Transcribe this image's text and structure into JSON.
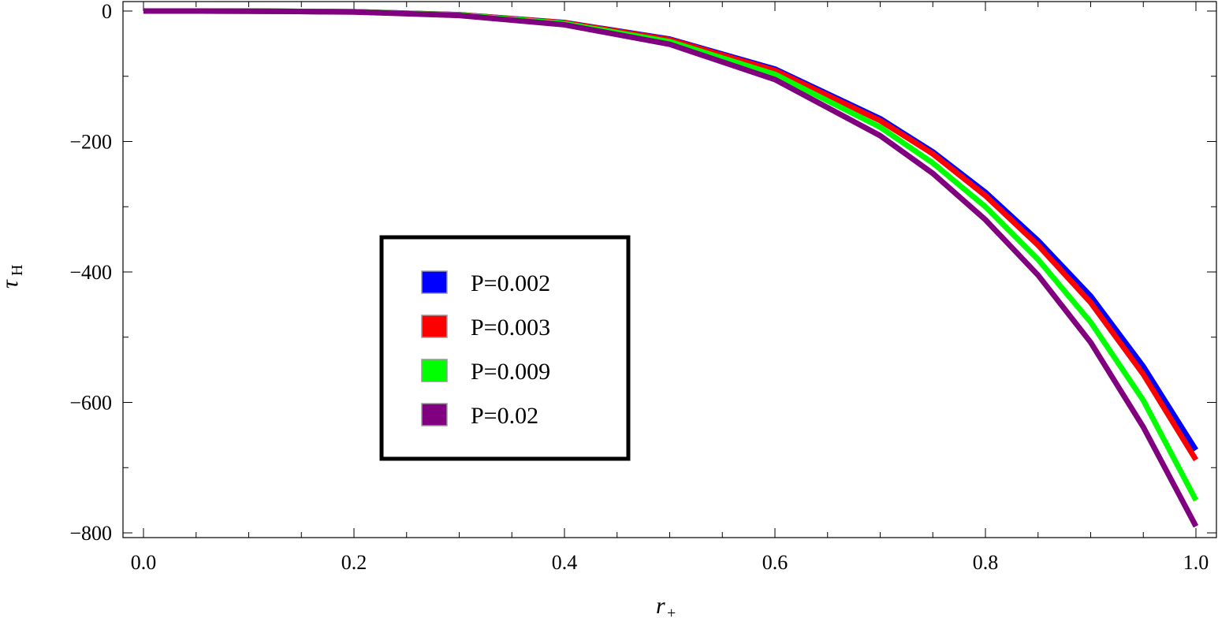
{
  "chart_data": {
    "type": "line",
    "xlabel": {
      "main": "r",
      "sub": "+"
    },
    "ylabel": {
      "main": "τ",
      "sub": "H"
    },
    "xlim": [
      0,
      1
    ],
    "ylim": [
      -800,
      0
    ],
    "xticks": [
      {
        "value": 0.0,
        "label": "0.0"
      },
      {
        "value": 0.2,
        "label": "0.2"
      },
      {
        "value": 0.4,
        "label": "0.4"
      },
      {
        "value": 0.6,
        "label": "0.6"
      },
      {
        "value": 0.8,
        "label": "0.8"
      },
      {
        "value": 1.0,
        "label": "1.0"
      }
    ],
    "yticks": [
      {
        "value": 0,
        "label": "0"
      },
      {
        "value": -200,
        "label": "−200"
      },
      {
        "value": -400,
        "label": "−400"
      },
      {
        "value": -600,
        "label": "−600"
      },
      {
        "value": -800,
        "label": "−800"
      }
    ],
    "grid": false,
    "legend_placement": "center-left",
    "series": [
      {
        "name": "P=0.002",
        "color": "#0000ff",
        "x": [
          0.0,
          0.1,
          0.2,
          0.3,
          0.4,
          0.5,
          0.6,
          0.7,
          0.75,
          0.8,
          0.85,
          0.9,
          0.95,
          1.0
        ],
        "y": [
          0,
          -0.07,
          -1.1,
          -5.6,
          -17.7,
          -43,
          -89,
          -165,
          -216,
          -278,
          -352,
          -437,
          -545,
          -673
        ]
      },
      {
        "name": "P=0.003",
        "color": "#ff0000",
        "x": [
          0.0,
          0.1,
          0.2,
          0.3,
          0.4,
          0.5,
          0.6,
          0.7,
          0.75,
          0.8,
          0.85,
          0.9,
          0.95,
          1.0
        ],
        "y": [
          0,
          -0.07,
          -1.1,
          -5.7,
          -18,
          -44,
          -91,
          -168,
          -219,
          -283,
          -359,
          -447,
          -557,
          -688
        ]
      },
      {
        "name": "P=0.009",
        "color": "#00ff00",
        "x": [
          0.0,
          0.1,
          0.2,
          0.3,
          0.4,
          0.5,
          0.6,
          0.7,
          0.75,
          0.8,
          0.85,
          0.9,
          0.95,
          1.0
        ],
        "y": [
          0,
          -0.08,
          -1.2,
          -6.1,
          -19.2,
          -47,
          -97,
          -178,
          -233,
          -300,
          -381,
          -477,
          -597,
          -750
        ]
      },
      {
        "name": "P=0.02",
        "color": "#800080",
        "x": [
          0.0,
          0.1,
          0.2,
          0.3,
          0.4,
          0.5,
          0.6,
          0.7,
          0.75,
          0.8,
          0.85,
          0.9,
          0.95,
          1.0
        ],
        "y": [
          0,
          -0.09,
          -1.4,
          -6.8,
          -21,
          -51,
          -105,
          -191,
          -249,
          -320,
          -405,
          -508,
          -638,
          -790
        ]
      }
    ]
  }
}
